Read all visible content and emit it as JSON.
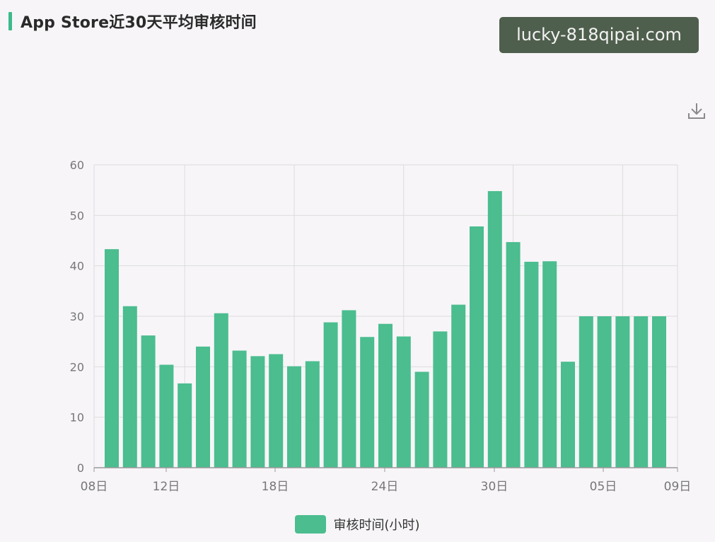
{
  "header": {
    "title": "App Store近30天平均审核时间"
  },
  "watermark": {
    "text": "lucky-818qipai.com"
  },
  "toolbar": {
    "download_icon": "download-icon"
  },
  "colors": {
    "bar": "#4bbd8f",
    "accent": "#3dba8a",
    "grid": "#dcdcdc",
    "axis": "#9a9a9a",
    "tick_text": "#777777"
  },
  "chart_data": {
    "type": "bar",
    "title": "App Store近30天平均审核时间",
    "xlabel": "",
    "ylabel": "",
    "ylim": [
      0,
      60
    ],
    "y_ticks": [
      0,
      10,
      20,
      30,
      40,
      50,
      60
    ],
    "x_tick_labels": [
      "08日",
      "12日",
      "18日",
      "24日",
      "30日",
      "05日",
      "09日"
    ],
    "grid": true,
    "legend_position": "bottom-center",
    "series": [
      {
        "name": "审核时间(小时)",
        "values": [
          43.3,
          32.0,
          26.2,
          20.4,
          16.7,
          24.0,
          30.6,
          23.2,
          22.1,
          22.5,
          20.1,
          21.1,
          28.8,
          31.2,
          25.9,
          28.5,
          26.0,
          19.0,
          27.0,
          32.3,
          47.8,
          54.8,
          44.7,
          40.8,
          40.9,
          21.0,
          30.0,
          30.0,
          30.0,
          30.0,
          30.0
        ]
      }
    ]
  }
}
